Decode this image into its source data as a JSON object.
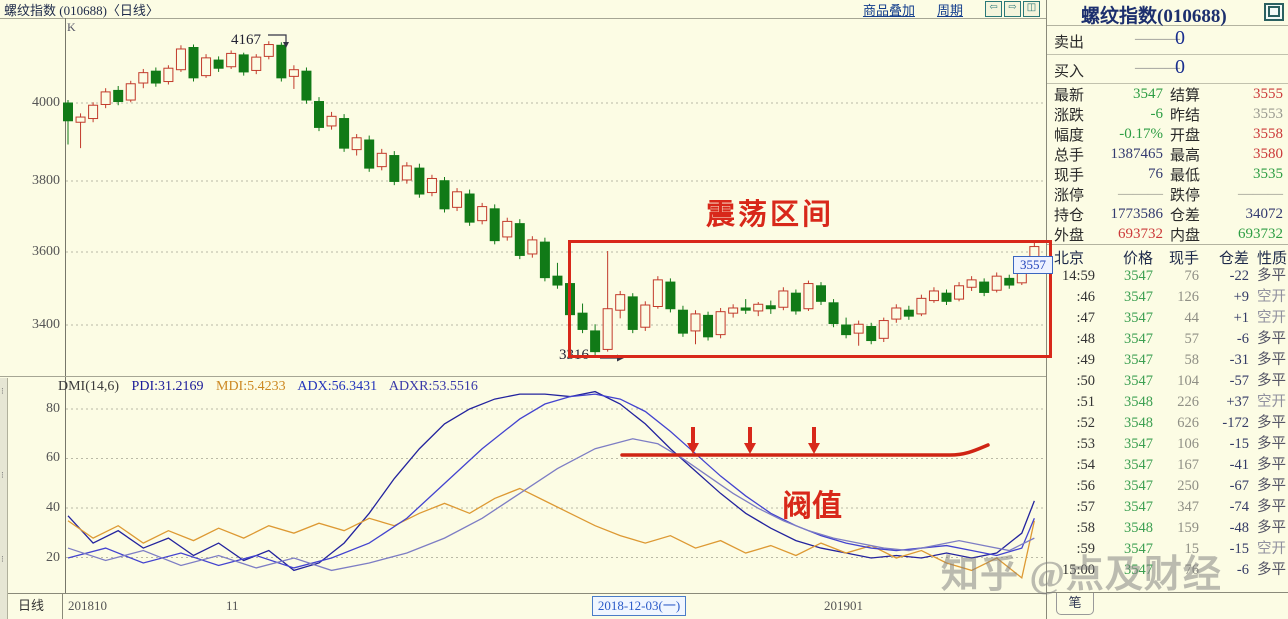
{
  "title_bar": {
    "title": "螺纹指数 (010688)〈日线〉",
    "overlay_link": "商品叠加",
    "period_link": "周期",
    "icons": [
      "back",
      "forward",
      "split-screen"
    ]
  },
  "right_panel": {
    "title": "螺纹指数(010688)",
    "sell_label": "卖出",
    "buy_label": "买入",
    "no_value": "———",
    "sell_qty": "0",
    "buy_qty": "0",
    "quotes": [
      {
        "label": "最新",
        "value": "3547",
        "color": "green"
      },
      {
        "label": "结算",
        "value": "3555",
        "color": "red"
      },
      {
        "label": "涨跌",
        "value": "-6",
        "color": "green"
      },
      {
        "label": "昨结",
        "value": "3553",
        "color": "gray"
      },
      {
        "label": "幅度",
        "value": "-0.17%",
        "color": "green"
      },
      {
        "label": "开盘",
        "value": "3558",
        "color": "red"
      },
      {
        "label": "总手",
        "value": "1387465",
        "color": "navy"
      },
      {
        "label": "最高",
        "value": "3580",
        "color": "red"
      },
      {
        "label": "现手",
        "value": "76",
        "color": "navy"
      },
      {
        "label": "最低",
        "value": "3535",
        "color": "green"
      },
      {
        "label": "涨停",
        "value": "———",
        "color": "gray"
      },
      {
        "label": "跌停",
        "value": "———",
        "color": "gray"
      },
      {
        "label": "持仓",
        "value": "1773586",
        "color": "navy"
      },
      {
        "label": "仓差",
        "value": "34072",
        "color": "navy"
      },
      {
        "label": "外盘",
        "value": "693732",
        "color": "red"
      },
      {
        "label": "内盘",
        "value": "693732",
        "color": "green"
      }
    ],
    "tick_header": [
      "北京",
      "价格",
      "现手",
      "仓差",
      "性质"
    ],
    "ticks": [
      {
        "time": "14:59",
        "price": "3547",
        "vol": "76",
        "diff": "-22",
        "nature": "多平"
      },
      {
        "time": ":46",
        "price": "3547",
        "vol": "126",
        "diff": "+9",
        "nature": "空开"
      },
      {
        "time": ":47",
        "price": "3547",
        "vol": "44",
        "diff": "+1",
        "nature": "空开"
      },
      {
        "time": ":48",
        "price": "3547",
        "vol": "57",
        "diff": "-6",
        "nature": "多平"
      },
      {
        "time": ":49",
        "price": "3547",
        "vol": "58",
        "diff": "-31",
        "nature": "多平"
      },
      {
        "time": ":50",
        "price": "3547",
        "vol": "104",
        "diff": "-57",
        "nature": "多平"
      },
      {
        "time": ":51",
        "price": "3548",
        "vol": "226",
        "diff": "+37",
        "nature": "空开"
      },
      {
        "time": ":52",
        "price": "3548",
        "vol": "626",
        "diff": "-172",
        "nature": "多平"
      },
      {
        "time": ":53",
        "price": "3547",
        "vol": "106",
        "diff": "-15",
        "nature": "多平"
      },
      {
        "time": ":54",
        "price": "3547",
        "vol": "167",
        "diff": "-41",
        "nature": "多平"
      },
      {
        "time": ":56",
        "price": "3547",
        "vol": "250",
        "diff": "-67",
        "nature": "多平"
      },
      {
        "time": ":57",
        "price": "3547",
        "vol": "347",
        "diff": "-74",
        "nature": "多平"
      },
      {
        "time": ":58",
        "price": "3548",
        "vol": "159",
        "diff": "-48",
        "nature": "多平"
      },
      {
        "time": ":59",
        "price": "3547",
        "vol": "15",
        "diff": "-15",
        "nature": "空开"
      },
      {
        "time": "15:00",
        "price": "3547",
        "vol": "76",
        "diff": "-6",
        "nature": "多平"
      }
    ],
    "bottom_tab": "笔"
  },
  "chart": {
    "corner_label": "K",
    "price_ticks": [
      "4000",
      "3800",
      "3600",
      "3400"
    ],
    "dmi_ticks": [
      "80",
      "60",
      "40",
      "20"
    ],
    "indicator": {
      "name": "DMI(14,6)",
      "pdi": "PDI:31.2169",
      "mdi": "MDI:5.4233",
      "adx": "ADX:56.3431",
      "adxr": "ADXR:53.5516"
    },
    "annotations": {
      "peak": "4167",
      "low": "3316",
      "last_price_tag": "3557",
      "range_label": "震荡区间",
      "threshold_label": "阀值"
    },
    "x_axis": {
      "period": "日线",
      "left_label": "201810",
      "mid_label": "11",
      "cursor_date": "2018-12-03(一)",
      "right_label": "201901"
    }
  },
  "watermark": "知乎 @点及财经",
  "colors": {
    "up": "#c23a2b",
    "down": "#117a17",
    "annotation_red": "#d8281a",
    "value_green": "#2e9e44",
    "value_red": "#cc3a3a",
    "value_navy": "#333a70",
    "value_gray": "#9a9a90"
  },
  "chart_data": {
    "type": "candlestick+line",
    "price_axis": {
      "ticks": [
        4000,
        3800,
        3600,
        3400
      ]
    },
    "dmi_axis": {
      "ticks": [
        80,
        60,
        40,
        20
      ]
    },
    "candles": [
      [
        4000,
        4008,
        3888,
        3952
      ],
      [
        3948,
        3972,
        3878,
        3962
      ],
      [
        3958,
        4002,
        3948,
        3994
      ],
      [
        3996,
        4040,
        3986,
        4030
      ],
      [
        4034,
        4046,
        3994,
        4004
      ],
      [
        4008,
        4060,
        4002,
        4052
      ],
      [
        4054,
        4092,
        4040,
        4082
      ],
      [
        4086,
        4096,
        4044,
        4054
      ],
      [
        4058,
        4102,
        4050,
        4094
      ],
      [
        4090,
        4156,
        4084,
        4146
      ],
      [
        4150,
        4158,
        4058,
        4068
      ],
      [
        4074,
        4132,
        4068,
        4122
      ],
      [
        4116,
        4126,
        4084,
        4094
      ],
      [
        4098,
        4142,
        4092,
        4134
      ],
      [
        4130,
        4136,
        4074,
        4084
      ],
      [
        4088,
        4132,
        4078,
        4124
      ],
      [
        4126,
        4167,
        4118,
        4158
      ],
      [
        4156,
        4164,
        4058,
        4068
      ],
      [
        4072,
        4102,
        4038,
        4090
      ],
      [
        4086,
        4096,
        3998,
        4008
      ],
      [
        4004,
        4016,
        3924,
        3934
      ],
      [
        3938,
        3976,
        3928,
        3964
      ],
      [
        3958,
        3970,
        3868,
        3878
      ],
      [
        3874,
        3916,
        3858,
        3906
      ],
      [
        3900,
        3912,
        3814,
        3824
      ],
      [
        3828,
        3876,
        3818,
        3864
      ],
      [
        3858,
        3870,
        3778,
        3788
      ],
      [
        3792,
        3840,
        3782,
        3830
      ],
      [
        3824,
        3836,
        3744,
        3754
      ],
      [
        3758,
        3806,
        3748,
        3796
      ],
      [
        3790,
        3800,
        3704,
        3714
      ],
      [
        3718,
        3770,
        3708,
        3760
      ],
      [
        3754,
        3766,
        3668,
        3678
      ],
      [
        3682,
        3730,
        3672,
        3720
      ],
      [
        3714,
        3726,
        3618,
        3628
      ],
      [
        3638,
        3690,
        3628,
        3680
      ],
      [
        3674,
        3686,
        3578,
        3588
      ],
      [
        3592,
        3640,
        3582,
        3630
      ],
      [
        3624,
        3636,
        3518,
        3528
      ],
      [
        3532,
        3568,
        3498,
        3508
      ],
      [
        3512,
        3544,
        3418,
        3428
      ],
      [
        3432,
        3458,
        3378,
        3388
      ],
      [
        3384,
        3402,
        3316,
        3328
      ],
      [
        3334,
        3600,
        3328,
        3444
      ],
      [
        3440,
        3492,
        3418,
        3482
      ],
      [
        3476,
        3486,
        3378,
        3388
      ],
      [
        3394,
        3464,
        3384,
        3454
      ],
      [
        3450,
        3532,
        3444,
        3522
      ],
      [
        3516,
        3526,
        3434,
        3444
      ],
      [
        3440,
        3452,
        3368,
        3378
      ],
      [
        3384,
        3440,
        3348,
        3430
      ],
      [
        3426,
        3436,
        3358,
        3368
      ],
      [
        3374,
        3446,
        3364,
        3436
      ],
      [
        3432,
        3456,
        3420,
        3446
      ],
      [
        3446,
        3470,
        3430,
        3440
      ],
      [
        3438,
        3462,
        3424,
        3456
      ],
      [
        3452,
        3466,
        3430,
        3444
      ],
      [
        3448,
        3502,
        3440,
        3492
      ],
      [
        3486,
        3496,
        3428,
        3438
      ],
      [
        3444,
        3520,
        3438,
        3512
      ],
      [
        3506,
        3516,
        3454,
        3464
      ],
      [
        3460,
        3470,
        3394,
        3404
      ],
      [
        3400,
        3420,
        3364,
        3374
      ],
      [
        3378,
        3412,
        3344,
        3402
      ],
      [
        3396,
        3406,
        3348,
        3358
      ],
      [
        3364,
        3420,
        3354,
        3412
      ],
      [
        3416,
        3456,
        3406,
        3446
      ],
      [
        3440,
        3452,
        3414,
        3424
      ],
      [
        3430,
        3482,
        3424,
        3472
      ],
      [
        3466,
        3502,
        3460,
        3492
      ],
      [
        3486,
        3496,
        3454,
        3464
      ],
      [
        3470,
        3516,
        3464,
        3506
      ],
      [
        3502,
        3532,
        3492,
        3522
      ],
      [
        3516,
        3526,
        3478,
        3488
      ],
      [
        3494,
        3542,
        3488,
        3532
      ],
      [
        3526,
        3536,
        3498,
        3508
      ],
      [
        3514,
        3560,
        3508,
        3552
      ],
      [
        3556,
        3622,
        3546,
        3612
      ]
    ],
    "dmi_series": [
      {
        "name": "PDI",
        "color": "#23239e",
        "points": [
          [
            0,
            37
          ],
          [
            2,
            26
          ],
          [
            4,
            31
          ],
          [
            6,
            24
          ],
          [
            8,
            28
          ],
          [
            10,
            21
          ],
          [
            12,
            26
          ],
          [
            14,
            19
          ],
          [
            16,
            23
          ],
          [
            18,
            15
          ],
          [
            20,
            18
          ],
          [
            22,
            26
          ],
          [
            24,
            38
          ],
          [
            26,
            52
          ],
          [
            28,
            64
          ],
          [
            30,
            74
          ],
          [
            32,
            80
          ],
          [
            34,
            84
          ],
          [
            36,
            86
          ],
          [
            38,
            86
          ],
          [
            40,
            85
          ],
          [
            42,
            87
          ],
          [
            44,
            82
          ],
          [
            46,
            74
          ],
          [
            48,
            64
          ],
          [
            50,
            55
          ],
          [
            52,
            46
          ],
          [
            54,
            38
          ],
          [
            56,
            32
          ],
          [
            58,
            27
          ],
          [
            60,
            24
          ],
          [
            62,
            22
          ],
          [
            64,
            20
          ],
          [
            66,
            21
          ],
          [
            68,
            20
          ],
          [
            70,
            22
          ],
          [
            72,
            20
          ],
          [
            74,
            22
          ],
          [
            76,
            30
          ],
          [
            77,
            43
          ]
        ]
      },
      {
        "name": "MDI",
        "color": "#dd9933",
        "points": [
          [
            0,
            35
          ],
          [
            2,
            28
          ],
          [
            4,
            33
          ],
          [
            6,
            26
          ],
          [
            8,
            31
          ],
          [
            10,
            27
          ],
          [
            12,
            32
          ],
          [
            14,
            28
          ],
          [
            16,
            33
          ],
          [
            18,
            30
          ],
          [
            20,
            34
          ],
          [
            22,
            31
          ],
          [
            24,
            36
          ],
          [
            26,
            33
          ],
          [
            28,
            38
          ],
          [
            30,
            42
          ],
          [
            32,
            38
          ],
          [
            34,
            44
          ],
          [
            36,
            48
          ],
          [
            38,
            43
          ],
          [
            40,
            38
          ],
          [
            42,
            33
          ],
          [
            44,
            29
          ],
          [
            46,
            26
          ],
          [
            48,
            29
          ],
          [
            50,
            24
          ],
          [
            52,
            27
          ],
          [
            54,
            22
          ],
          [
            56,
            25
          ],
          [
            58,
            21
          ],
          [
            60,
            26
          ],
          [
            62,
            22
          ],
          [
            64,
            25
          ],
          [
            66,
            20
          ],
          [
            68,
            23
          ],
          [
            70,
            18
          ],
          [
            72,
            15
          ],
          [
            74,
            20
          ],
          [
            76,
            12
          ],
          [
            77,
            35
          ]
        ]
      },
      {
        "name": "ADX",
        "color": "#4343cf",
        "points": [
          [
            0,
            20
          ],
          [
            3,
            24
          ],
          [
            6,
            18
          ],
          [
            9,
            22
          ],
          [
            12,
            17
          ],
          [
            15,
            21
          ],
          [
            18,
            16
          ],
          [
            21,
            20
          ],
          [
            24,
            26
          ],
          [
            27,
            36
          ],
          [
            30,
            50
          ],
          [
            33,
            64
          ],
          [
            36,
            76
          ],
          [
            38,
            82
          ],
          [
            40,
            85
          ],
          [
            42,
            86
          ],
          [
            44,
            84
          ],
          [
            46,
            79
          ],
          [
            48,
            71
          ],
          [
            50,
            62
          ],
          [
            52,
            53
          ],
          [
            54,
            45
          ],
          [
            56,
            38
          ],
          [
            58,
            33
          ],
          [
            60,
            29
          ],
          [
            62,
            26
          ],
          [
            64,
            24
          ],
          [
            66,
            23
          ],
          [
            68,
            24
          ],
          [
            70,
            25
          ],
          [
            72,
            23
          ],
          [
            74,
            21
          ],
          [
            76,
            24
          ],
          [
            77,
            36
          ]
        ]
      },
      {
        "name": "ADXR",
        "color": "#7d7dc4",
        "points": [
          [
            0,
            24
          ],
          [
            3,
            19
          ],
          [
            6,
            23
          ],
          [
            9,
            17
          ],
          [
            12,
            21
          ],
          [
            15,
            16
          ],
          [
            18,
            20
          ],
          [
            21,
            15
          ],
          [
            24,
            18
          ],
          [
            27,
            22
          ],
          [
            30,
            28
          ],
          [
            33,
            36
          ],
          [
            36,
            46
          ],
          [
            39,
            56
          ],
          [
            42,
            64
          ],
          [
            45,
            68
          ],
          [
            47,
            66
          ],
          [
            49,
            60
          ],
          [
            51,
            53
          ],
          [
            53,
            46
          ],
          [
            55,
            40
          ],
          [
            57,
            35
          ],
          [
            59,
            31
          ],
          [
            61,
            28
          ],
          [
            63,
            26
          ],
          [
            65,
            24
          ],
          [
            67,
            23
          ],
          [
            69,
            25
          ],
          [
            71,
            27
          ],
          [
            73,
            25
          ],
          [
            75,
            23
          ],
          [
            77,
            28
          ]
        ]
      }
    ]
  }
}
